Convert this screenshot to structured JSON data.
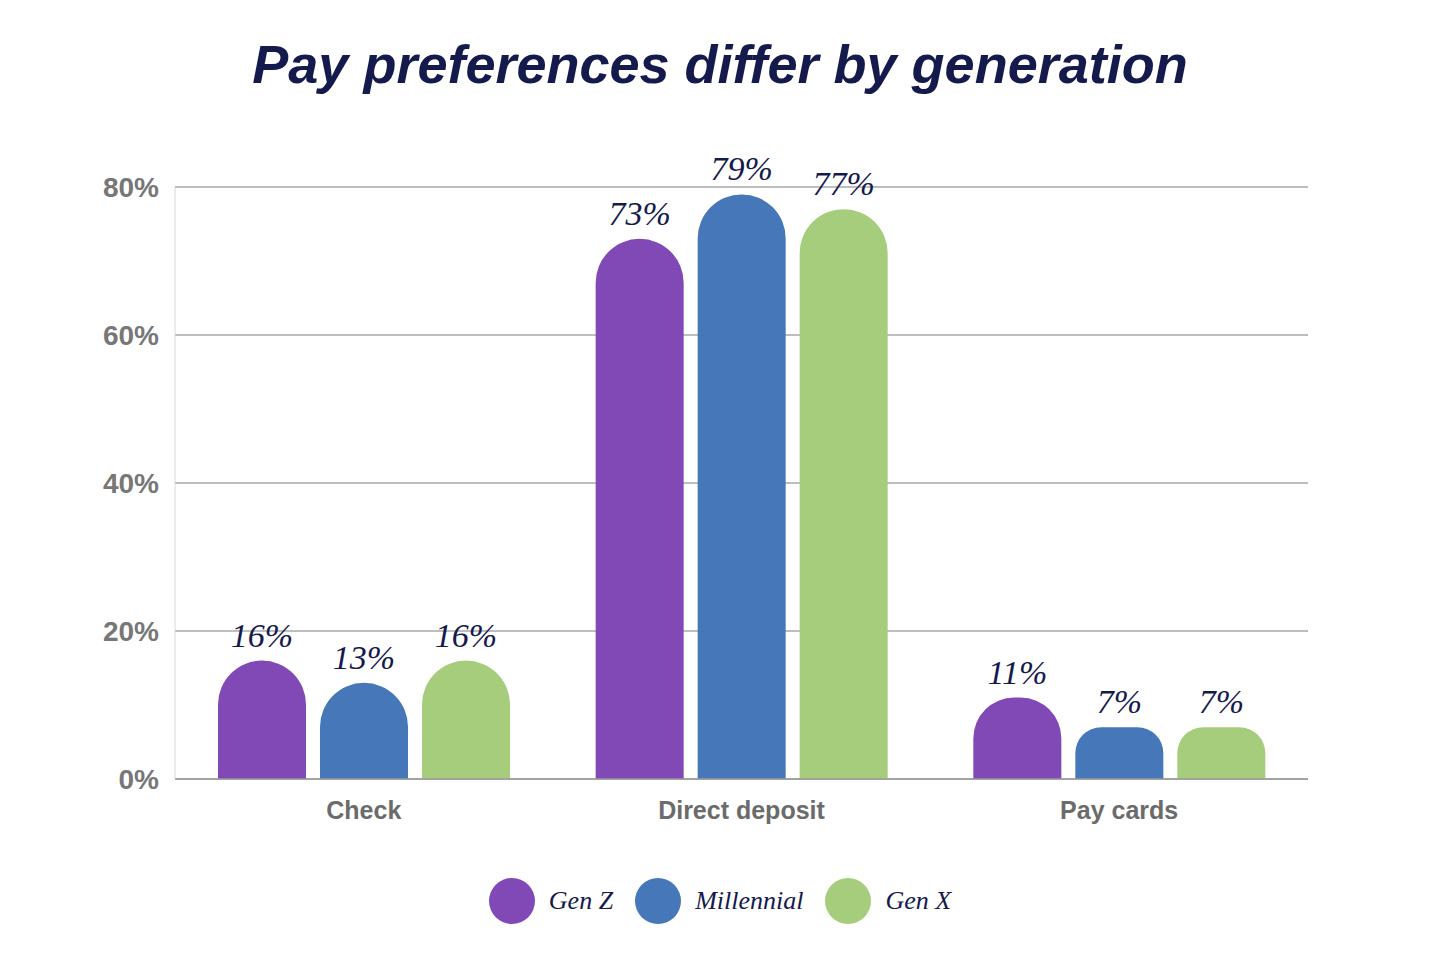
{
  "chart_data": {
    "type": "bar",
    "title": "Pay preferences differ by generation",
    "categories": [
      "Check",
      "Direct deposit",
      "Pay cards"
    ],
    "series": [
      {
        "name": "Gen Z",
        "color": "#8149b6",
        "values": [
          16,
          73,
          11
        ],
        "value_labels": [
          "16%",
          "73%",
          "11%"
        ]
      },
      {
        "name": "Millennial",
        "color": "#4677b8",
        "values": [
          13,
          79,
          7
        ],
        "value_labels": [
          "13%",
          "79%",
          "7%"
        ]
      },
      {
        "name": "Gen X",
        "color": "#a6cd7b",
        "values": [
          16,
          77,
          7
        ],
        "value_labels": [
          "16%",
          "77%",
          "7%"
        ]
      }
    ],
    "ylim": [
      0,
      80
    ],
    "yticks": [
      {
        "value": 0,
        "label": "0%"
      },
      {
        "value": 20,
        "label": "20%"
      },
      {
        "value": 40,
        "label": "40%"
      },
      {
        "value": 60,
        "label": "60%"
      },
      {
        "value": 80,
        "label": "80%"
      }
    ],
    "grid": true,
    "data_labels": true,
    "legend": "bottom"
  }
}
